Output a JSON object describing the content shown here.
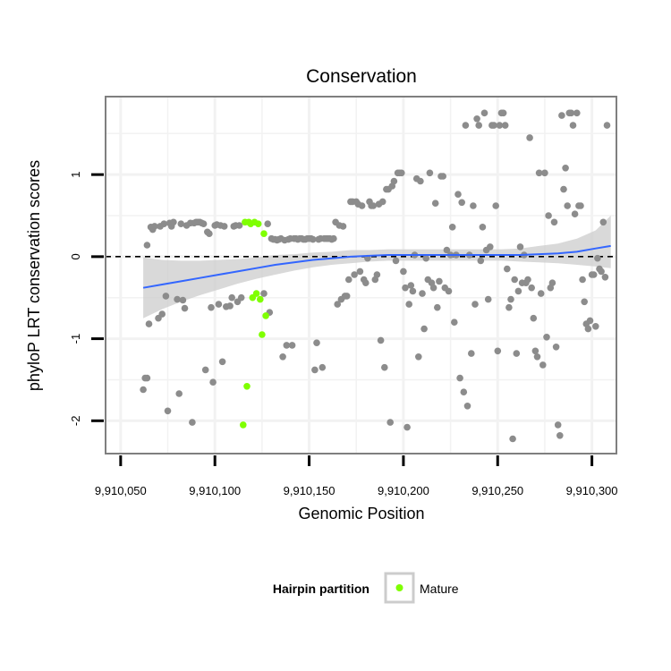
{
  "chart_data": {
    "type": "scatter",
    "title": "Conservation",
    "xlabel": "Genomic Position",
    "ylabel": "phyloP LRT conservation scores",
    "xlim": [
      9910042,
      9910313
    ],
    "ylim": [
      -2.4,
      1.95
    ],
    "x_ticks": [
      9910050,
      9910100,
      9910150,
      9910200,
      9910250,
      9910300
    ],
    "x_tick_labels": [
      "9,910,050",
      "9,910,100",
      "9,910,150",
      "9,910,200",
      "9,910,250",
      "9,910,300"
    ],
    "y_ticks": [
      -2,
      -1,
      0,
      1
    ],
    "y_tick_labels": [
      "-2",
      "-1",
      "0",
      "1"
    ],
    "grid": true,
    "reference_line": {
      "y": 0,
      "style": "dashed",
      "color": "#000000"
    },
    "legend": {
      "title": "Hairpin partition",
      "position": "bottom",
      "entries": [
        {
          "label": "Mature",
          "color": "#7FFF00"
        }
      ]
    },
    "colors": {
      "background": "#ffffff",
      "panel_border": "#7f7f7f",
      "grid": "#f2f2f2",
      "points": "#8c8c8c",
      "mature": "#7FFF00",
      "smooth_line": "#3366FF",
      "ribbon": "#cccccc"
    },
    "series": [
      {
        "color": "#8c8c8c",
        "points": [
          [
            9910062,
            -1.62
          ],
          [
            9910063,
            -1.48
          ],
          [
            9910064,
            -1.48
          ],
          [
            9910064,
            0.14
          ],
          [
            9910065,
            -0.82
          ],
          [
            9910066,
            0.36
          ],
          [
            9910067,
            0.33
          ],
          [
            9910068,
            0.37
          ],
          [
            9910070,
            -0.75
          ],
          [
            9910071,
            0.37
          ],
          [
            9910072,
            -0.7
          ],
          [
            9910073,
            0.4
          ],
          [
            9910074,
            -0.48
          ],
          [
            9910075,
            -1.88
          ],
          [
            9910076,
            0.41
          ],
          [
            9910077,
            0.37
          ],
          [
            9910078,
            0.42
          ],
          [
            9910080,
            -0.52
          ],
          [
            9910081,
            -1.67
          ],
          [
            9910082,
            0.4
          ],
          [
            9910083,
            -0.53
          ],
          [
            9910084,
            -0.63
          ],
          [
            9910085,
            0.38
          ],
          [
            9910087,
            0.41
          ],
          [
            9910088,
            -2.02
          ],
          [
            9910089,
            0.41
          ],
          [
            9910090,
            0.42
          ],
          [
            9910091,
            0.42
          ],
          [
            9910092,
            0.42
          ],
          [
            9910093,
            0.41
          ],
          [
            9910094,
            0.4
          ],
          [
            9910095,
            -1.38
          ],
          [
            9910096,
            0.3
          ],
          [
            9910097,
            0.28
          ],
          [
            9910098,
            -0.62
          ],
          [
            9910099,
            -1.53
          ],
          [
            9910100,
            0.38
          ],
          [
            9910101,
            0.39
          ],
          [
            9910102,
            -0.58
          ],
          [
            9910103,
            0.38
          ],
          [
            9910104,
            -1.28
          ],
          [
            9910105,
            0.37
          ],
          [
            9910106,
            -0.61
          ],
          [
            9910108,
            -0.6
          ],
          [
            9910109,
            -0.5
          ],
          [
            9910110,
            0.37
          ],
          [
            9910111,
            0.38
          ],
          [
            9910112,
            -0.55
          ],
          [
            9910113,
            0.38
          ],
          [
            9910114,
            -0.5
          ],
          [
            9910126,
            -0.45
          ],
          [
            9910128,
            0.4
          ],
          [
            9910129,
            -0.68
          ],
          [
            9910130,
            0.22
          ],
          [
            9910131,
            0.21
          ],
          [
            9910132,
            0.21
          ],
          [
            9910133,
            0.2
          ],
          [
            9910134,
            0.21
          ],
          [
            9910135,
            0.22
          ],
          [
            9910136,
            -1.22
          ],
          [
            9910137,
            0.2
          ],
          [
            9910138,
            -1.08
          ],
          [
            9910139,
            0.21
          ],
          [
            9910140,
            0.22
          ],
          [
            9910141,
            -1.08
          ],
          [
            9910142,
            0.22
          ],
          [
            9910143,
            0.22
          ],
          [
            9910144,
            0.21
          ],
          [
            9910145,
            0.22
          ],
          [
            9910146,
            0.22
          ],
          [
            9910147,
            0.21
          ],
          [
            9910148,
            0.21
          ],
          [
            9910149,
            0.22
          ],
          [
            9910150,
            0.22
          ],
          [
            9910151,
            0.22
          ],
          [
            9910152,
            0.21
          ],
          [
            9910153,
            -1.38
          ],
          [
            9910154,
            -1.05
          ],
          [
            9910155,
            0.21
          ],
          [
            9910156,
            0.22
          ],
          [
            9910157,
            -1.35
          ],
          [
            9910158,
            0.22
          ],
          [
            9910159,
            0.22
          ],
          [
            9910160,
            0.22
          ],
          [
            9910161,
            0.22
          ],
          [
            9910162,
            0.21
          ],
          [
            9910163,
            0.22
          ],
          [
            9910164,
            0.42
          ],
          [
            9910165,
            -0.58
          ],
          [
            9910166,
            0.38
          ],
          [
            9910167,
            -0.52
          ],
          [
            9910168,
            0.37
          ],
          [
            9910169,
            -0.48
          ],
          [
            9910170,
            -0.48
          ],
          [
            9910171,
            -0.28
          ],
          [
            9910172,
            0.67
          ],
          [
            9910173,
            0.67
          ],
          [
            9910174,
            -0.22
          ],
          [
            9910175,
            0.67
          ],
          [
            9910176,
            0.64
          ],
          [
            9910177,
            -0.18
          ],
          [
            9910178,
            0.62
          ],
          [
            9910179,
            -0.28
          ],
          [
            9910180,
            -0.32
          ],
          [
            9910181,
            -0.02
          ],
          [
            9910182,
            0.67
          ],
          [
            9910183,
            0.62
          ],
          [
            9910184,
            0.62
          ],
          [
            9910185,
            -0.28
          ],
          [
            9910186,
            -0.22
          ],
          [
            9910187,
            0.64
          ],
          [
            9910188,
            -1.02
          ],
          [
            9910189,
            0.67
          ],
          [
            9910190,
            -1.35
          ],
          [
            9910191,
            0.82
          ],
          [
            9910192,
            0.82
          ],
          [
            9910193,
            -2.02
          ],
          [
            9910194,
            0.86
          ],
          [
            9910195,
            0.92
          ],
          [
            9910196,
            -0.05
          ],
          [
            9910197,
            1.02
          ],
          [
            9910198,
            1.02
          ],
          [
            9910199,
            1.02
          ],
          [
            9910200,
            -0.18
          ],
          [
            9910201,
            -0.38
          ],
          [
            9910202,
            -2.08
          ],
          [
            9910203,
            -0.58
          ],
          [
            9910204,
            -0.35
          ],
          [
            9910205,
            -0.42
          ],
          [
            9910206,
            0.02
          ],
          [
            9910207,
            0.95
          ],
          [
            9910208,
            -1.22
          ],
          [
            9910209,
            0.92
          ],
          [
            9910210,
            -0.45
          ],
          [
            9910211,
            -0.88
          ],
          [
            9910212,
            -0.02
          ],
          [
            9910213,
            -0.28
          ],
          [
            9910214,
            1.02
          ],
          [
            9910215,
            -0.32
          ],
          [
            9910216,
            -0.38
          ],
          [
            9910217,
            0.65
          ],
          [
            9910218,
            -0.62
          ],
          [
            9910219,
            -0.3
          ],
          [
            9910220,
            0.98
          ],
          [
            9910221,
            0.98
          ],
          [
            9910222,
            -0.38
          ],
          [
            9910223,
            0.08
          ],
          [
            9910224,
            -0.42
          ],
          [
            9910225,
            0.02
          ],
          [
            9910226,
            0.36
          ],
          [
            9910227,
            -0.8
          ],
          [
            9910228,
            0.02
          ],
          [
            9910229,
            0.76
          ],
          [
            9910230,
            -1.48
          ],
          [
            9910231,
            0.66
          ],
          [
            9910232,
            -1.65
          ],
          [
            9910233,
            1.6
          ],
          [
            9910234,
            -1.82
          ],
          [
            9910235,
            0.02
          ],
          [
            9910236,
            -1.18
          ],
          [
            9910237,
            0.62
          ],
          [
            9910238,
            -0.58
          ],
          [
            9910239,
            1.68
          ],
          [
            9910240,
            1.6
          ],
          [
            9910241,
            -0.05
          ],
          [
            9910242,
            0.36
          ],
          [
            9910243,
            1.75
          ],
          [
            9910244,
            0.08
          ],
          [
            9910245,
            -0.52
          ],
          [
            9910246,
            0.12
          ],
          [
            9910247,
            1.6
          ],
          [
            9910248,
            1.6
          ],
          [
            9910249,
            0.62
          ],
          [
            9910250,
            -1.15
          ],
          [
            9910251,
            1.6
          ],
          [
            9910252,
            1.75
          ],
          [
            9910253,
            1.75
          ],
          [
            9910254,
            1.6
          ],
          [
            9910255,
            -0.15
          ],
          [
            9910256,
            -0.62
          ],
          [
            9910257,
            -0.52
          ],
          [
            9910258,
            -2.22
          ],
          [
            9910259,
            -0.28
          ],
          [
            9910260,
            -1.18
          ],
          [
            9910261,
            -0.42
          ],
          [
            9910262,
            0.12
          ],
          [
            9910263,
            -0.32
          ],
          [
            9910264,
            0.02
          ],
          [
            9910265,
            -0.32
          ],
          [
            9910266,
            -0.28
          ],
          [
            9910267,
            1.45
          ],
          [
            9910268,
            -0.38
          ],
          [
            9910269,
            -0.75
          ],
          [
            9910270,
            -1.15
          ],
          [
            9910271,
            -1.22
          ],
          [
            9910272,
            1.02
          ],
          [
            9910273,
            -0.45
          ],
          [
            9910274,
            -1.32
          ],
          [
            9910275,
            1.02
          ],
          [
            9910276,
            -0.98
          ],
          [
            9910277,
            0.5
          ],
          [
            9910278,
            -0.38
          ],
          [
            9910279,
            -0.32
          ],
          [
            9910280,
            0.42
          ],
          [
            9910281,
            -1.1
          ],
          [
            9910282,
            -2.05
          ],
          [
            9910283,
            -2.18
          ],
          [
            9910284,
            1.72
          ],
          [
            9910285,
            0.82
          ],
          [
            9910286,
            1.08
          ],
          [
            9910287,
            0.62
          ],
          [
            9910288,
            1.75
          ],
          [
            9910289,
            1.75
          ],
          [
            9910290,
            1.6
          ],
          [
            9910291,
            0.52
          ],
          [
            9910292,
            1.75
          ],
          [
            9910293,
            0.62
          ],
          [
            9910294,
            0.62
          ],
          [
            9910295,
            -0.28
          ],
          [
            9910296,
            -0.55
          ],
          [
            9910297,
            -0.82
          ],
          [
            9910298,
            -0.88
          ],
          [
            9910299,
            -0.78
          ],
          [
            9910300,
            -0.22
          ],
          [
            9910301,
            -0.22
          ],
          [
            9910302,
            -0.85
          ],
          [
            9910303,
            -0.02
          ],
          [
            9910304,
            -0.15
          ],
          [
            9910305,
            -0.18
          ],
          [
            9910306,
            0.42
          ],
          [
            9910307,
            -0.25
          ],
          [
            9910308,
            1.6
          ]
        ]
      },
      {
        "name": "Mature",
        "color": "#7FFF00",
        "points": [
          [
            9910115,
            -2.05
          ],
          [
            9910116,
            0.42
          ],
          [
            9910117,
            -1.58
          ],
          [
            9910118,
            0.42
          ],
          [
            9910119,
            0.4
          ],
          [
            9910120,
            -0.5
          ],
          [
            9910121,
            0.42
          ],
          [
            9910122,
            -0.45
          ],
          [
            9910123,
            0.4
          ],
          [
            9910124,
            -0.52
          ],
          [
            9910125,
            -0.95
          ],
          [
            9910126,
            0.28
          ],
          [
            9910127,
            -0.72
          ]
        ]
      }
    ],
    "smooth": {
      "x": [
        9910062,
        9910072,
        9910082,
        9910092,
        9910102,
        9910112,
        9910122,
        9910132,
        9910142,
        9910152,
        9910162,
        9910172,
        9910182,
        9910192,
        9910202,
        9910212,
        9910222,
        9910232,
        9910242,
        9910252,
        9910262,
        9910272,
        9910282,
        9910292,
        9910302,
        9910310
      ],
      "y": [
        -0.38,
        -0.34,
        -0.3,
        -0.26,
        -0.22,
        -0.18,
        -0.14,
        -0.1,
        -0.07,
        -0.04,
        -0.02,
        0.0,
        0.01,
        0.02,
        0.02,
        0.02,
        0.02,
        0.02,
        0.02,
        0.02,
        0.02,
        0.03,
        0.04,
        0.06,
        0.1,
        0.13
      ],
      "lower": [
        -0.75,
        -0.64,
        -0.55,
        -0.47,
        -0.4,
        -0.33,
        -0.27,
        -0.22,
        -0.17,
        -0.13,
        -0.1,
        -0.08,
        -0.06,
        -0.05,
        -0.05,
        -0.05,
        -0.05,
        -0.05,
        -0.05,
        -0.05,
        -0.06,
        -0.07,
        -0.08,
        -0.1,
        -0.12,
        -0.14
      ],
      "upper": [
        -0.01,
        -0.04,
        -0.05,
        -0.05,
        -0.04,
        -0.03,
        -0.01,
        0.02,
        0.03,
        0.05,
        0.06,
        0.08,
        0.08,
        0.09,
        0.09,
        0.09,
        0.09,
        0.09,
        0.09,
        0.09,
        0.1,
        0.13,
        0.16,
        0.22,
        0.32,
        0.5
      ]
    }
  }
}
